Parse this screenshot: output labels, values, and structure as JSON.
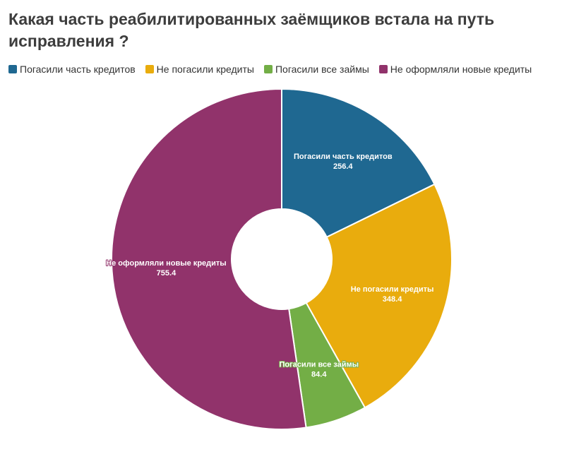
{
  "chart_data": {
    "type": "pie",
    "title": "Какая часть реабилитированных заёмщиков встала на путь исправления ?",
    "categories": [
      "Погасили часть кредитов",
      "Не погасили кредиты",
      "Погасили все займы",
      "Не оформляли новые кредиты"
    ],
    "values": [
      256.4,
      348.4,
      84.4,
      755.4
    ],
    "value_labels": [
      "256.4",
      "348.4",
      "84.4",
      "755.4"
    ],
    "colors": [
      "#1f6891",
      "#e9ac0d",
      "#73ae46",
      "#91336b"
    ],
    "donut": true,
    "legend_position": "top-left"
  }
}
